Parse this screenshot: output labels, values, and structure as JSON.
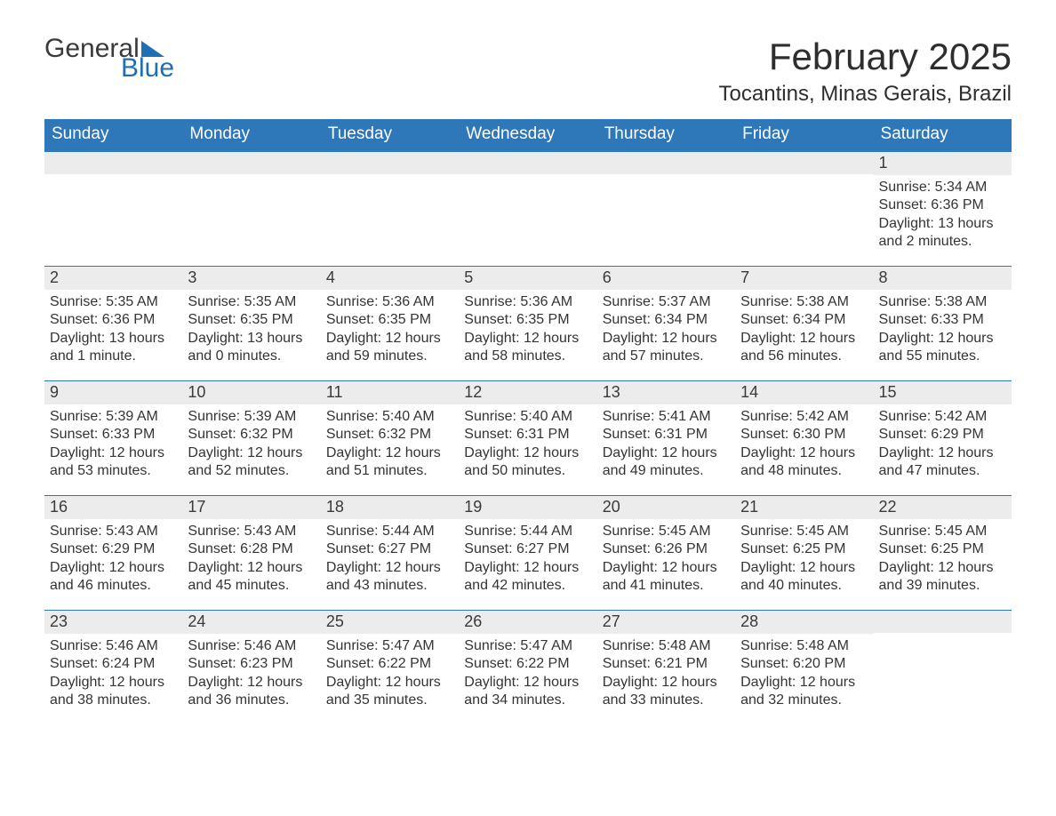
{
  "brand": {
    "part1": "General",
    "part2": "Blue",
    "accent_color": "#1f6fb2"
  },
  "title": "February 2025",
  "location": "Tocantins, Minas Gerais, Brazil",
  "theme": {
    "header_bg": "#2e77b8",
    "header_text": "#ffffff",
    "daynum_bg": "#ececec",
    "week_border": "#2e77b8",
    "text_color": "#343434",
    "page_bg": "#ffffff",
    "title_fontsize": 42,
    "location_fontsize": 24,
    "weekday_fontsize": 19,
    "daynum_fontsize": 18,
    "body_fontsize": 16
  },
  "weekdays": [
    "Sunday",
    "Monday",
    "Tuesday",
    "Wednesday",
    "Thursday",
    "Friday",
    "Saturday"
  ],
  "weeks": [
    [
      {
        "day": "",
        "sunrise": "",
        "sunset": "",
        "daylight": ""
      },
      {
        "day": "",
        "sunrise": "",
        "sunset": "",
        "daylight": ""
      },
      {
        "day": "",
        "sunrise": "",
        "sunset": "",
        "daylight": ""
      },
      {
        "day": "",
        "sunrise": "",
        "sunset": "",
        "daylight": ""
      },
      {
        "day": "",
        "sunrise": "",
        "sunset": "",
        "daylight": ""
      },
      {
        "day": "",
        "sunrise": "",
        "sunset": "",
        "daylight": ""
      },
      {
        "day": "1",
        "sunrise": "Sunrise: 5:34 AM",
        "sunset": "Sunset: 6:36 PM",
        "daylight": "Daylight: 13 hours and 2 minutes."
      }
    ],
    [
      {
        "day": "2",
        "sunrise": "Sunrise: 5:35 AM",
        "sunset": "Sunset: 6:36 PM",
        "daylight": "Daylight: 13 hours and 1 minute."
      },
      {
        "day": "3",
        "sunrise": "Sunrise: 5:35 AM",
        "sunset": "Sunset: 6:35 PM",
        "daylight": "Daylight: 13 hours and 0 minutes."
      },
      {
        "day": "4",
        "sunrise": "Sunrise: 5:36 AM",
        "sunset": "Sunset: 6:35 PM",
        "daylight": "Daylight: 12 hours and 59 minutes."
      },
      {
        "day": "5",
        "sunrise": "Sunrise: 5:36 AM",
        "sunset": "Sunset: 6:35 PM",
        "daylight": "Daylight: 12 hours and 58 minutes."
      },
      {
        "day": "6",
        "sunrise": "Sunrise: 5:37 AM",
        "sunset": "Sunset: 6:34 PM",
        "daylight": "Daylight: 12 hours and 57 minutes."
      },
      {
        "day": "7",
        "sunrise": "Sunrise: 5:38 AM",
        "sunset": "Sunset: 6:34 PM",
        "daylight": "Daylight: 12 hours and 56 minutes."
      },
      {
        "day": "8",
        "sunrise": "Sunrise: 5:38 AM",
        "sunset": "Sunset: 6:33 PM",
        "daylight": "Daylight: 12 hours and 55 minutes."
      }
    ],
    [
      {
        "day": "9",
        "sunrise": "Sunrise: 5:39 AM",
        "sunset": "Sunset: 6:33 PM",
        "daylight": "Daylight: 12 hours and 53 minutes."
      },
      {
        "day": "10",
        "sunrise": "Sunrise: 5:39 AM",
        "sunset": "Sunset: 6:32 PM",
        "daylight": "Daylight: 12 hours and 52 minutes."
      },
      {
        "day": "11",
        "sunrise": "Sunrise: 5:40 AM",
        "sunset": "Sunset: 6:32 PM",
        "daylight": "Daylight: 12 hours and 51 minutes."
      },
      {
        "day": "12",
        "sunrise": "Sunrise: 5:40 AM",
        "sunset": "Sunset: 6:31 PM",
        "daylight": "Daylight: 12 hours and 50 minutes."
      },
      {
        "day": "13",
        "sunrise": "Sunrise: 5:41 AM",
        "sunset": "Sunset: 6:31 PM",
        "daylight": "Daylight: 12 hours and 49 minutes."
      },
      {
        "day": "14",
        "sunrise": "Sunrise: 5:42 AM",
        "sunset": "Sunset: 6:30 PM",
        "daylight": "Daylight: 12 hours and 48 minutes."
      },
      {
        "day": "15",
        "sunrise": "Sunrise: 5:42 AM",
        "sunset": "Sunset: 6:29 PM",
        "daylight": "Daylight: 12 hours and 47 minutes."
      }
    ],
    [
      {
        "day": "16",
        "sunrise": "Sunrise: 5:43 AM",
        "sunset": "Sunset: 6:29 PM",
        "daylight": "Daylight: 12 hours and 46 minutes."
      },
      {
        "day": "17",
        "sunrise": "Sunrise: 5:43 AM",
        "sunset": "Sunset: 6:28 PM",
        "daylight": "Daylight: 12 hours and 45 minutes."
      },
      {
        "day": "18",
        "sunrise": "Sunrise: 5:44 AM",
        "sunset": "Sunset: 6:27 PM",
        "daylight": "Daylight: 12 hours and 43 minutes."
      },
      {
        "day": "19",
        "sunrise": "Sunrise: 5:44 AM",
        "sunset": "Sunset: 6:27 PM",
        "daylight": "Daylight: 12 hours and 42 minutes."
      },
      {
        "day": "20",
        "sunrise": "Sunrise: 5:45 AM",
        "sunset": "Sunset: 6:26 PM",
        "daylight": "Daylight: 12 hours and 41 minutes."
      },
      {
        "day": "21",
        "sunrise": "Sunrise: 5:45 AM",
        "sunset": "Sunset: 6:25 PM",
        "daylight": "Daylight: 12 hours and 40 minutes."
      },
      {
        "day": "22",
        "sunrise": "Sunrise: 5:45 AM",
        "sunset": "Sunset: 6:25 PM",
        "daylight": "Daylight: 12 hours and 39 minutes."
      }
    ],
    [
      {
        "day": "23",
        "sunrise": "Sunrise: 5:46 AM",
        "sunset": "Sunset: 6:24 PM",
        "daylight": "Daylight: 12 hours and 38 minutes."
      },
      {
        "day": "24",
        "sunrise": "Sunrise: 5:46 AM",
        "sunset": "Sunset: 6:23 PM",
        "daylight": "Daylight: 12 hours and 36 minutes."
      },
      {
        "day": "25",
        "sunrise": "Sunrise: 5:47 AM",
        "sunset": "Sunset: 6:22 PM",
        "daylight": "Daylight: 12 hours and 35 minutes."
      },
      {
        "day": "26",
        "sunrise": "Sunrise: 5:47 AM",
        "sunset": "Sunset: 6:22 PM",
        "daylight": "Daylight: 12 hours and 34 minutes."
      },
      {
        "day": "27",
        "sunrise": "Sunrise: 5:48 AM",
        "sunset": "Sunset: 6:21 PM",
        "daylight": "Daylight: 12 hours and 33 minutes."
      },
      {
        "day": "28",
        "sunrise": "Sunrise: 5:48 AM",
        "sunset": "Sunset: 6:20 PM",
        "daylight": "Daylight: 12 hours and 32 minutes."
      },
      {
        "day": "",
        "sunrise": "",
        "sunset": "",
        "daylight": ""
      }
    ]
  ]
}
